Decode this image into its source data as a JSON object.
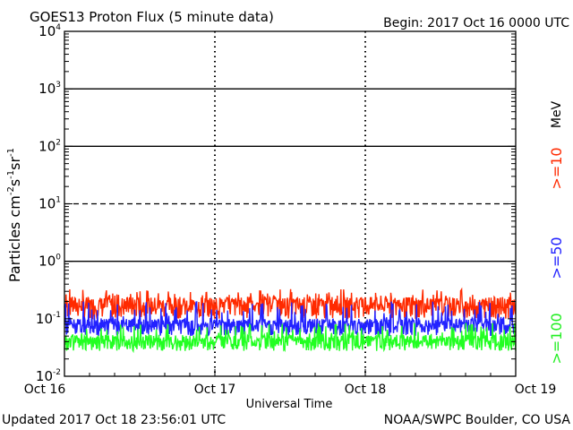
{
  "chart_data": {
    "type": "line",
    "title": "GOES13 Proton Flux (5 minute data)",
    "begin_label": "Begin: 2017 Oct 16 0000 UTC",
    "xlabel": "Universal Time",
    "ylabel": {
      "base": "Particles cm",
      "exp1": "-2",
      "mid1": "s",
      "exp2": "-1",
      "mid2": "sr",
      "exp3": "-1"
    },
    "x_ticks": [
      "Oct 16",
      "Oct 17",
      "Oct 18",
      "Oct 19"
    ],
    "x_range_days": [
      0,
      3
    ],
    "y_scale": "log",
    "ylim": [
      0.01,
      10000
    ],
    "y_ticks": [
      {
        "base": "10",
        "exp": "-2"
      },
      {
        "base": "10",
        "exp": "-1"
      },
      {
        "base": "10",
        "exp": "0"
      },
      {
        "base": "10",
        "exp": "1"
      },
      {
        "base": "10",
        "exp": "2"
      },
      {
        "base": "10",
        "exp": "3"
      },
      {
        "base": "10",
        "exp": "4"
      }
    ],
    "threshold_lines": [
      1,
      100,
      1000
    ],
    "dashed_line": 10,
    "series": [
      {
        "name": ">=10",
        "color": "#ff2a00",
        "baseline": 0.17,
        "spread": 0.14,
        "spike_max": 0.33
      },
      {
        "name": ">=50",
        "color": "#2222ff",
        "baseline": 0.075,
        "spread": 0.05,
        "spike_max": 0.2
      },
      {
        "name": ">=100",
        "color": "#22ff22",
        "baseline": 0.04,
        "spread": 0.025,
        "spike_max": 0.085
      }
    ],
    "legend": {
      "unit": "MeV",
      "placement": "right"
    }
  },
  "footer": {
    "updated": "Updated 2017 Oct 18 23:56:01 UTC",
    "source": "NOAA/SWPC Boulder, CO USA"
  }
}
